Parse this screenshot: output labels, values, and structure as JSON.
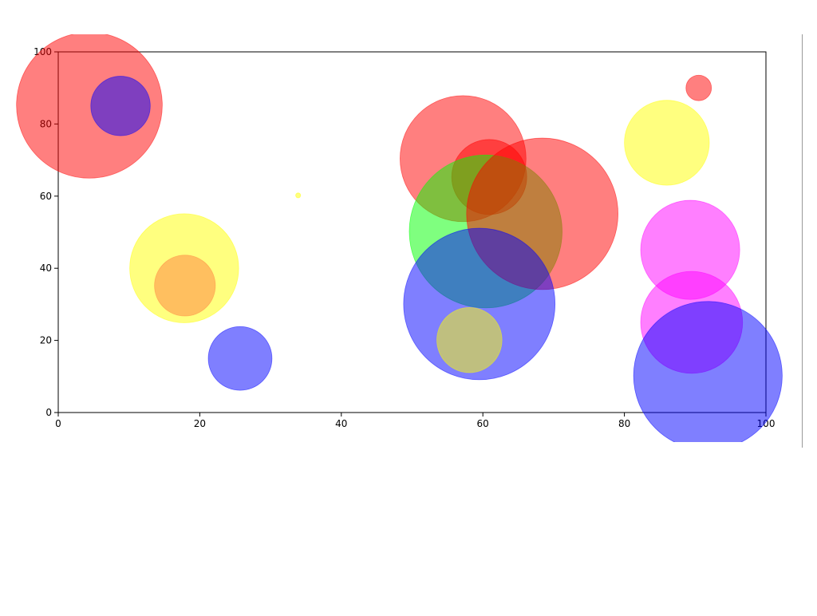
{
  "chart_data": {
    "type": "bubble",
    "x": [
      4.4,
      8.8,
      17.8,
      17.9,
      25.7,
      33.9,
      57.2,
      60.9,
      60.4,
      68.4,
      59.5,
      58.1,
      90.5,
      86,
      89.3,
      89.5,
      91.8
    ],
    "y": [
      85.2,
      85,
      40,
      35.2,
      15,
      60.2,
      70.4,
      65.3,
      50.2,
      55.1,
      30.1,
      20.1,
      90,
      74.8,
      45.1,
      25,
      10.2
    ],
    "sizes": [
      10.3,
      4.2,
      7.7,
      4.3,
      4.5,
      0.35,
      8.9,
      5.3,
      10.8,
      10.7,
      10.7,
      4.6,
      1.8,
      6,
      7,
      7.2,
      10.5
    ],
    "colors": [
      "#ff0000",
      "#0000ff",
      "#ffff00",
      "#ff8040",
      "#0000ff",
      "#ffff00",
      "#ff0000",
      "#ff0000",
      "#00ff00",
      "#ff0000",
      "#0000ff",
      "#ffff00",
      "#ff0000",
      "#ffff00",
      "#ff00ff",
      "#ff00ff",
      "#0000ff"
    ],
    "opacity": 0.5,
    "xlim": [
      0,
      100
    ],
    "ylim": [
      0,
      100
    ],
    "xticks": [
      0,
      20,
      40,
      60,
      80,
      100
    ],
    "yticks": [
      0,
      20,
      40,
      60,
      80,
      100
    ]
  }
}
